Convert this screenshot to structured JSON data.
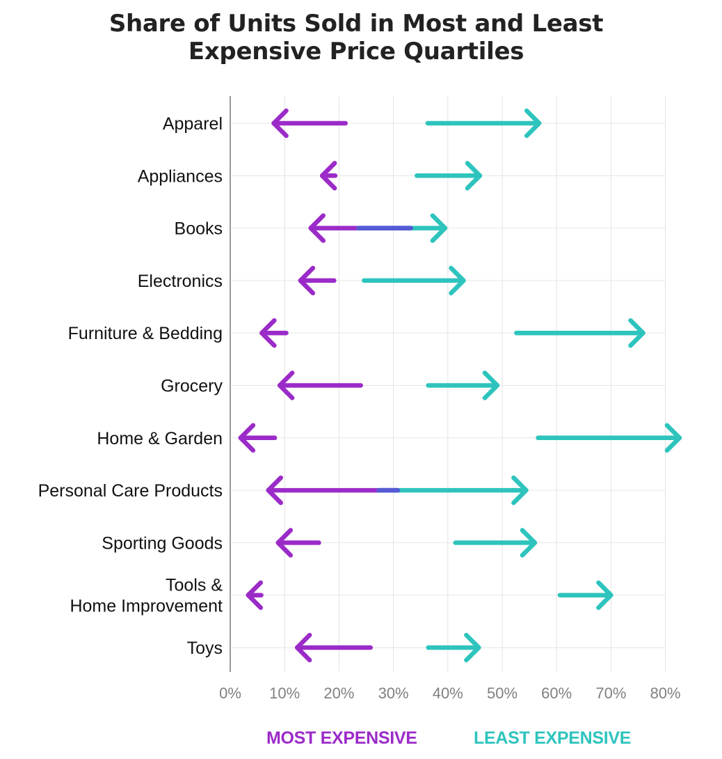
{
  "chart_data": {
    "type": "range-arrow",
    "title_lines": [
      "Share of Units Sold in Most and Least",
      "Expensive Price Quartiles"
    ],
    "x_ticks": [
      "0%",
      "10%",
      "20%",
      "30%",
      "40%",
      "50%",
      "60%",
      "70%",
      "80%"
    ],
    "xlim": [
      0,
      80
    ],
    "grid": true,
    "legend_position": "bottom",
    "colors": {
      "most": "#9b2bc8",
      "least": "#2ec4bd",
      "overlap": "#5559d4"
    },
    "legend": [
      {
        "name": "MOST EXPENSIVE",
        "color": "#9b2bc8"
      },
      {
        "name": "LEAST EXPENSIVE",
        "color": "#2ec4bd"
      }
    ],
    "categories": [
      {
        "lines": [
          "Apparel"
        ],
        "most": [
          21.2,
          8.0
        ],
        "least": [
          36.3,
          56.8
        ]
      },
      {
        "lines": [
          "Appliances"
        ],
        "most": [
          19.3,
          16.9
        ],
        "least": [
          34.3,
          45.9
        ]
      },
      {
        "lines": [
          "Books"
        ],
        "most": [
          33.2,
          14.8
        ],
        "least": [
          23.6,
          39.5
        ]
      },
      {
        "lines": [
          "Electronics"
        ],
        "most": [
          19.1,
          12.9
        ],
        "least": [
          24.6,
          42.9
        ]
      },
      {
        "lines": [
          "Furniture & Bedding"
        ],
        "most": [
          10.3,
          5.8
        ],
        "least": [
          52.6,
          75.9
        ]
      },
      {
        "lines": [
          "Grocery"
        ],
        "most": [
          24.0,
          9.1
        ],
        "least": [
          36.4,
          49.1
        ]
      },
      {
        "lines": [
          "Home & Garden"
        ],
        "most": [
          8.2,
          1.9
        ],
        "least": [
          56.6,
          82.6
        ]
      },
      {
        "lines": [
          "Personal Care Products"
        ],
        "most": [
          30.8,
          7.0
        ],
        "least": [
          27.3,
          54.4
        ]
      },
      {
        "lines": [
          "Sporting Goods"
        ],
        "most": [
          16.3,
          8.8
        ],
        "least": [
          41.4,
          56.0
        ]
      },
      {
        "lines": [
          "Tools &",
          "Home Improvement"
        ],
        "most": [
          5.7,
          3.3
        ],
        "least": [
          60.6,
          70.0
        ]
      },
      {
        "lines": [
          "Toys"
        ],
        "most": [
          25.8,
          12.3
        ],
        "least": [
          36.4,
          45.7
        ]
      }
    ]
  }
}
